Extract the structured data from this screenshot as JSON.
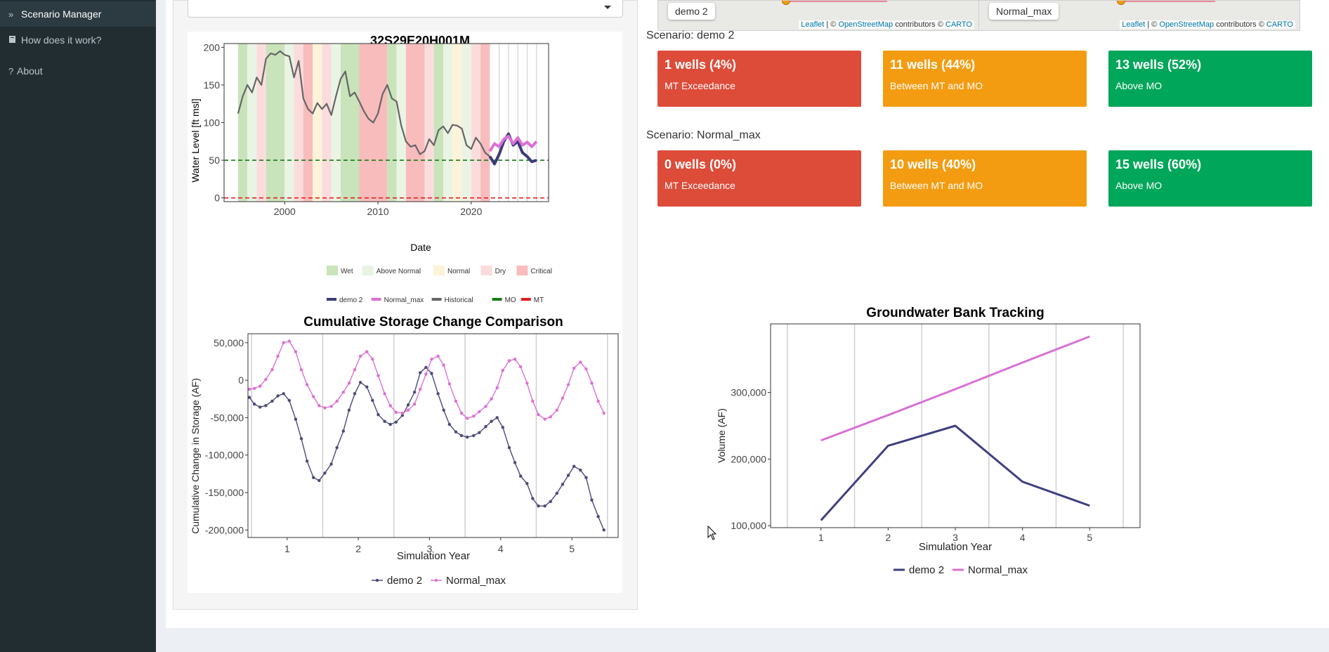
{
  "sidebar": {
    "items": [
      {
        "icon": "double-chevron-right-icon",
        "label": "Scenario Manager"
      },
      {
        "icon": "book-icon",
        "label": "How does it work?"
      },
      {
        "icon": "question-icon",
        "label": "About"
      }
    ]
  },
  "maps": [
    {
      "tag": "demo 2",
      "attribution": {
        "leaflet": "Leaflet",
        "osm": "OpenStreetMap",
        "contrib": "contributors ©",
        "carto": "CARTO"
      }
    },
    {
      "tag": "Normal_max",
      "attribution": {
        "leaflet": "Leaflet",
        "osm": "OpenStreetMap",
        "contrib": "contributors ©",
        "carto": "CARTO"
      }
    }
  ],
  "scenarios": [
    {
      "label": "Scenario: demo 2",
      "boxes": [
        {
          "value": "1 wells (4%)",
          "subtitle": "MT Exceedance",
          "color": "#dd4b39"
        },
        {
          "value": "11 wells (44%)",
          "subtitle": "Between MT and MO",
          "color": "#f39c12"
        },
        {
          "value": "13 wells (52%)",
          "subtitle": "Above MO",
          "color": "#00a65a"
        }
      ]
    },
    {
      "label": "Scenario: Normal_max",
      "boxes": [
        {
          "value": "0 wells (0%)",
          "subtitle": "MT Exceedance",
          "color": "#dd4b39"
        },
        {
          "value": "10 wells (40%)",
          "subtitle": "Between MT and MO",
          "color": "#f39c12"
        },
        {
          "value": "15 wells (60%)",
          "subtitle": "Above MO",
          "color": "#00a65a"
        }
      ]
    }
  ],
  "chart_data": [
    {
      "type": "line",
      "title": "32S29E20H001M",
      "xlabel": "Date",
      "ylabel": "Water Level [ft msl]",
      "ylim": [
        -5,
        205
      ],
      "xlim": [
        1993.5,
        2028.3
      ],
      "xticks": [
        {
          "v": 2000,
          "label": "2000"
        },
        {
          "v": 2010,
          "label": "2010"
        },
        {
          "v": 2020,
          "label": "2020"
        }
      ],
      "yticks": [
        {
          "v": 0,
          "label": "0"
        },
        {
          "v": 50,
          "label": "50"
        },
        {
          "v": 100,
          "label": "100"
        },
        {
          "v": 150,
          "label": "150"
        },
        {
          "v": 200,
          "label": "200"
        }
      ],
      "year_types_legend": [
        {
          "label": "Wet",
          "color": "#c9e3bb"
        },
        {
          "label": "Above Normal",
          "color": "#eaf4e4"
        },
        {
          "label": "Normal",
          "color": "#fdf3d9"
        },
        {
          "label": "Dry",
          "color": "#fbdcdc"
        },
        {
          "label": "Critical",
          "color": "#f8bcbc"
        }
      ],
      "year_bands": [
        {
          "start": 1995,
          "end": 1996,
          "type": "Wet"
        },
        {
          "start": 1996,
          "end": 1997,
          "type": "Above Normal"
        },
        {
          "start": 1997,
          "end": 1998,
          "type": "Dry"
        },
        {
          "start": 1998,
          "end": 2000,
          "type": "Wet"
        },
        {
          "start": 2000,
          "end": 2001,
          "type": "Above Normal"
        },
        {
          "start": 2001,
          "end": 2002,
          "type": "Dry"
        },
        {
          "start": 2002,
          "end": 2003,
          "type": "Critical"
        },
        {
          "start": 2003,
          "end": 2004,
          "type": "Normal"
        },
        {
          "start": 2004,
          "end": 2005,
          "type": "Dry"
        },
        {
          "start": 2005,
          "end": 2006,
          "type": "Above Normal"
        },
        {
          "start": 2006,
          "end": 2008,
          "type": "Wet"
        },
        {
          "start": 2008,
          "end": 2011,
          "type": "Critical"
        },
        {
          "start": 2011,
          "end": 2012,
          "type": "Wet"
        },
        {
          "start": 2012,
          "end": 2013,
          "type": "Above Normal"
        },
        {
          "start": 2013,
          "end": 2015,
          "type": "Critical"
        },
        {
          "start": 2015,
          "end": 2016,
          "type": "Dry"
        },
        {
          "start": 2016,
          "end": 2017,
          "type": "Wet"
        },
        {
          "start": 2017,
          "end": 2018,
          "type": "Above Normal"
        },
        {
          "start": 2018,
          "end": 2019,
          "type": "Normal"
        },
        {
          "start": 2019,
          "end": 2020,
          "type": "Above Normal"
        },
        {
          "start": 2020,
          "end": 2021,
          "type": "Dry"
        },
        {
          "start": 2021,
          "end": 2022,
          "type": "Critical"
        }
      ],
      "future_gridlines": [
        2023,
        2024,
        2025,
        2026,
        2027
      ],
      "reference_lines": [
        {
          "name": "MO",
          "y": 50,
          "color": "#1a7a1a"
        },
        {
          "name": "MT",
          "y": 0,
          "color": "#e02020"
        }
      ],
      "series": [
        {
          "name": "Historical",
          "color": "#666666",
          "x": [
            1995,
            1995.5,
            1996,
            1996.5,
            1997,
            1997.5,
            1998,
            1998.5,
            1999,
            1999.5,
            2000,
            2000.5,
            2001,
            2001.5,
            2002,
            2002.5,
            2003,
            2003.5,
            2004,
            2004.5,
            2005,
            2005.5,
            2006,
            2006.5,
            2007,
            2007.5,
            2008,
            2008.5,
            2009,
            2009.5,
            2010,
            2010.5,
            2011,
            2011.5,
            2012,
            2012.5,
            2013,
            2013.5,
            2014,
            2014.5,
            2015,
            2015.5,
            2016,
            2016.5,
            2017,
            2017.5,
            2018,
            2018.5,
            2019,
            2019.5,
            2020,
            2020.5,
            2021,
            2021.5,
            2022
          ],
          "values": [
            112,
            135,
            150,
            140,
            160,
            150,
            185,
            192,
            190,
            195,
            190,
            188,
            160,
            182,
            132,
            118,
            112,
            126,
            118,
            125,
            110,
            135,
            158,
            168,
            135,
            140,
            128,
            115,
            105,
            100,
            112,
            138,
            150,
            132,
            128,
            96,
            75,
            68,
            70,
            58,
            62,
            78,
            70,
            90,
            95,
            86,
            97,
            96,
            92,
            70,
            65,
            80,
            72,
            60,
            55
          ]
        },
        {
          "name": "demo 2",
          "color": "#3b3b7a",
          "x": [
            2022,
            2022.5,
            2023,
            2023.5,
            2024,
            2024.5,
            2025,
            2025.5,
            2026,
            2026.5,
            2027
          ],
          "values": [
            55,
            45,
            58,
            75,
            85,
            70,
            75,
            60,
            55,
            48,
            50
          ]
        },
        {
          "name": "Normal_max",
          "color": "#da70d6",
          "x": [
            2022,
            2022.5,
            2023,
            2023.5,
            2024,
            2024.5,
            2025,
            2025.5,
            2026,
            2026.5,
            2027
          ],
          "values": [
            62,
            72,
            68,
            78,
            82,
            72,
            80,
            70,
            74,
            68,
            75
          ]
        }
      ],
      "series_legend": [
        {
          "label": "demo 2",
          "color": "#3b3b7a"
        },
        {
          "label": "Normal_max",
          "color": "#da70d6"
        },
        {
          "label": "Historical",
          "color": "#666666"
        },
        {
          "label": "MO",
          "color": "#1a7a1a"
        },
        {
          "label": "MT",
          "color": "#e02020"
        }
      ]
    },
    {
      "type": "line",
      "title": "Cumulative Storage Change Comparison",
      "xlabel": "Simulation Year",
      "ylabel": "Cumulative Change in Storage (AF)",
      "xlim": [
        0.45,
        5.65
      ],
      "ylim": [
        -210000,
        62000
      ],
      "xticks": [
        {
          "v": 1,
          "label": "1"
        },
        {
          "v": 2,
          "label": "2"
        },
        {
          "v": 3,
          "label": "3"
        },
        {
          "v": 4,
          "label": "4"
        },
        {
          "v": 5,
          "label": "5"
        }
      ],
      "yticks": [
        {
          "v": 50000,
          "label": "50,000"
        },
        {
          "v": 0,
          "label": "0"
        },
        {
          "v": -50000,
          "label": "-50,000"
        },
        {
          "v": -100000,
          "label": "-100,000"
        },
        {
          "v": -150000,
          "label": "-150,000"
        },
        {
          "v": -200000,
          "label": "-200,000"
        }
      ],
      "vgrid": [
        0.5,
        1.5,
        2.5,
        3.5,
        4.5,
        5.5
      ],
      "series": [
        {
          "name": "demo 2",
          "color": "#4a4a7a",
          "values": [
            -23000,
            -32000,
            -36000,
            -34000,
            -28000,
            -21000,
            -18000,
            -27000,
            -52000,
            -78000,
            -108000,
            -130000,
            -134000,
            -124000,
            -112000,
            -90000,
            -68000,
            -40000,
            -18000,
            -3000,
            -9000,
            -27000,
            -46000,
            -55000,
            -59000,
            -56000,
            -47000,
            -33000,
            -16000,
            10000,
            17000,
            9000,
            -18000,
            -40000,
            -59000,
            -69000,
            -74000,
            -76000,
            -74000,
            -70000,
            -62000,
            -55000,
            -50000,
            -63000,
            -90000,
            -110000,
            -128000,
            -138000,
            -158000,
            -168000,
            -168000,
            -162000,
            -151000,
            -139000,
            -127000,
            -115000,
            -120000,
            -130000,
            -160000,
            -182000,
            -200000
          ]
        },
        {
          "name": "Normal_max",
          "color": "#da70d6",
          "values": [
            -12000,
            -11000,
            -8000,
            1000,
            14000,
            32000,
            50000,
            52000,
            38000,
            14000,
            -6000,
            -22000,
            -34000,
            -37000,
            -35000,
            -28000,
            -16000,
            -4000,
            14000,
            32000,
            38000,
            28000,
            6000,
            -18000,
            -34000,
            -43000,
            -44000,
            -40000,
            -32000,
            -12000,
            8000,
            28000,
            32000,
            20000,
            -5000,
            -28000,
            -44000,
            -51000,
            -48000,
            -42000,
            -35000,
            -25000,
            -10000,
            13000,
            26000,
            28000,
            18000,
            -4000,
            -28000,
            -46000,
            -52000,
            -49000,
            -40000,
            -24000,
            -6000,
            16000,
            24000,
            15000,
            -4000,
            -28000,
            -44000
          ]
        }
      ],
      "x": [
        0.47,
        0.54,
        0.62,
        0.7,
        0.79,
        0.87,
        0.95,
        1.03,
        1.12,
        1.2,
        1.28,
        1.37,
        1.45,
        1.53,
        1.62,
        1.7,
        1.79,
        1.87,
        1.95,
        2.03,
        2.12,
        2.2,
        2.28,
        2.37,
        2.45,
        2.53,
        2.62,
        2.7,
        2.79,
        2.87,
        2.95,
        3.03,
        3.12,
        3.2,
        3.28,
        3.37,
        3.45,
        3.53,
        3.62,
        3.7,
        3.79,
        3.87,
        3.95,
        4.03,
        4.12,
        4.2,
        4.28,
        4.37,
        4.45,
        4.53,
        4.62,
        4.7,
        4.79,
        4.87,
        4.95,
        5.03,
        5.12,
        5.2,
        5.28,
        5.37,
        5.45
      ]
    },
    {
      "type": "line",
      "title": "Groundwater Bank Tracking",
      "xlabel": "Simulation Year",
      "ylabel": "Volume (AF)",
      "xlim": [
        0.25,
        5.75
      ],
      "ylim": [
        97000,
        403000
      ],
      "xticks": [
        {
          "v": 1,
          "label": "1"
        },
        {
          "v": 2,
          "label": "2"
        },
        {
          "v": 3,
          "label": "3"
        },
        {
          "v": 4,
          "label": "4"
        },
        {
          "v": 5,
          "label": "5"
        }
      ],
      "yticks": [
        {
          "v": 100000,
          "label": "100,000"
        },
        {
          "v": 200000,
          "label": "200,000"
        },
        {
          "v": 300000,
          "label": "300,000"
        }
      ],
      "vgrid": [
        0.5,
        1.5,
        2.5,
        3.5,
        4.5,
        5.5
      ],
      "categories": [
        1,
        2,
        3,
        4,
        5
      ],
      "series": [
        {
          "name": "demo 2",
          "color": "#3f3f7f",
          "values": [
            108000,
            220000,
            250000,
            166000,
            130000
          ]
        },
        {
          "name": "Normal_max",
          "color": "#da70d6",
          "values": [
            228000,
            266000,
            305000,
            345000,
            384000
          ]
        }
      ]
    }
  ]
}
